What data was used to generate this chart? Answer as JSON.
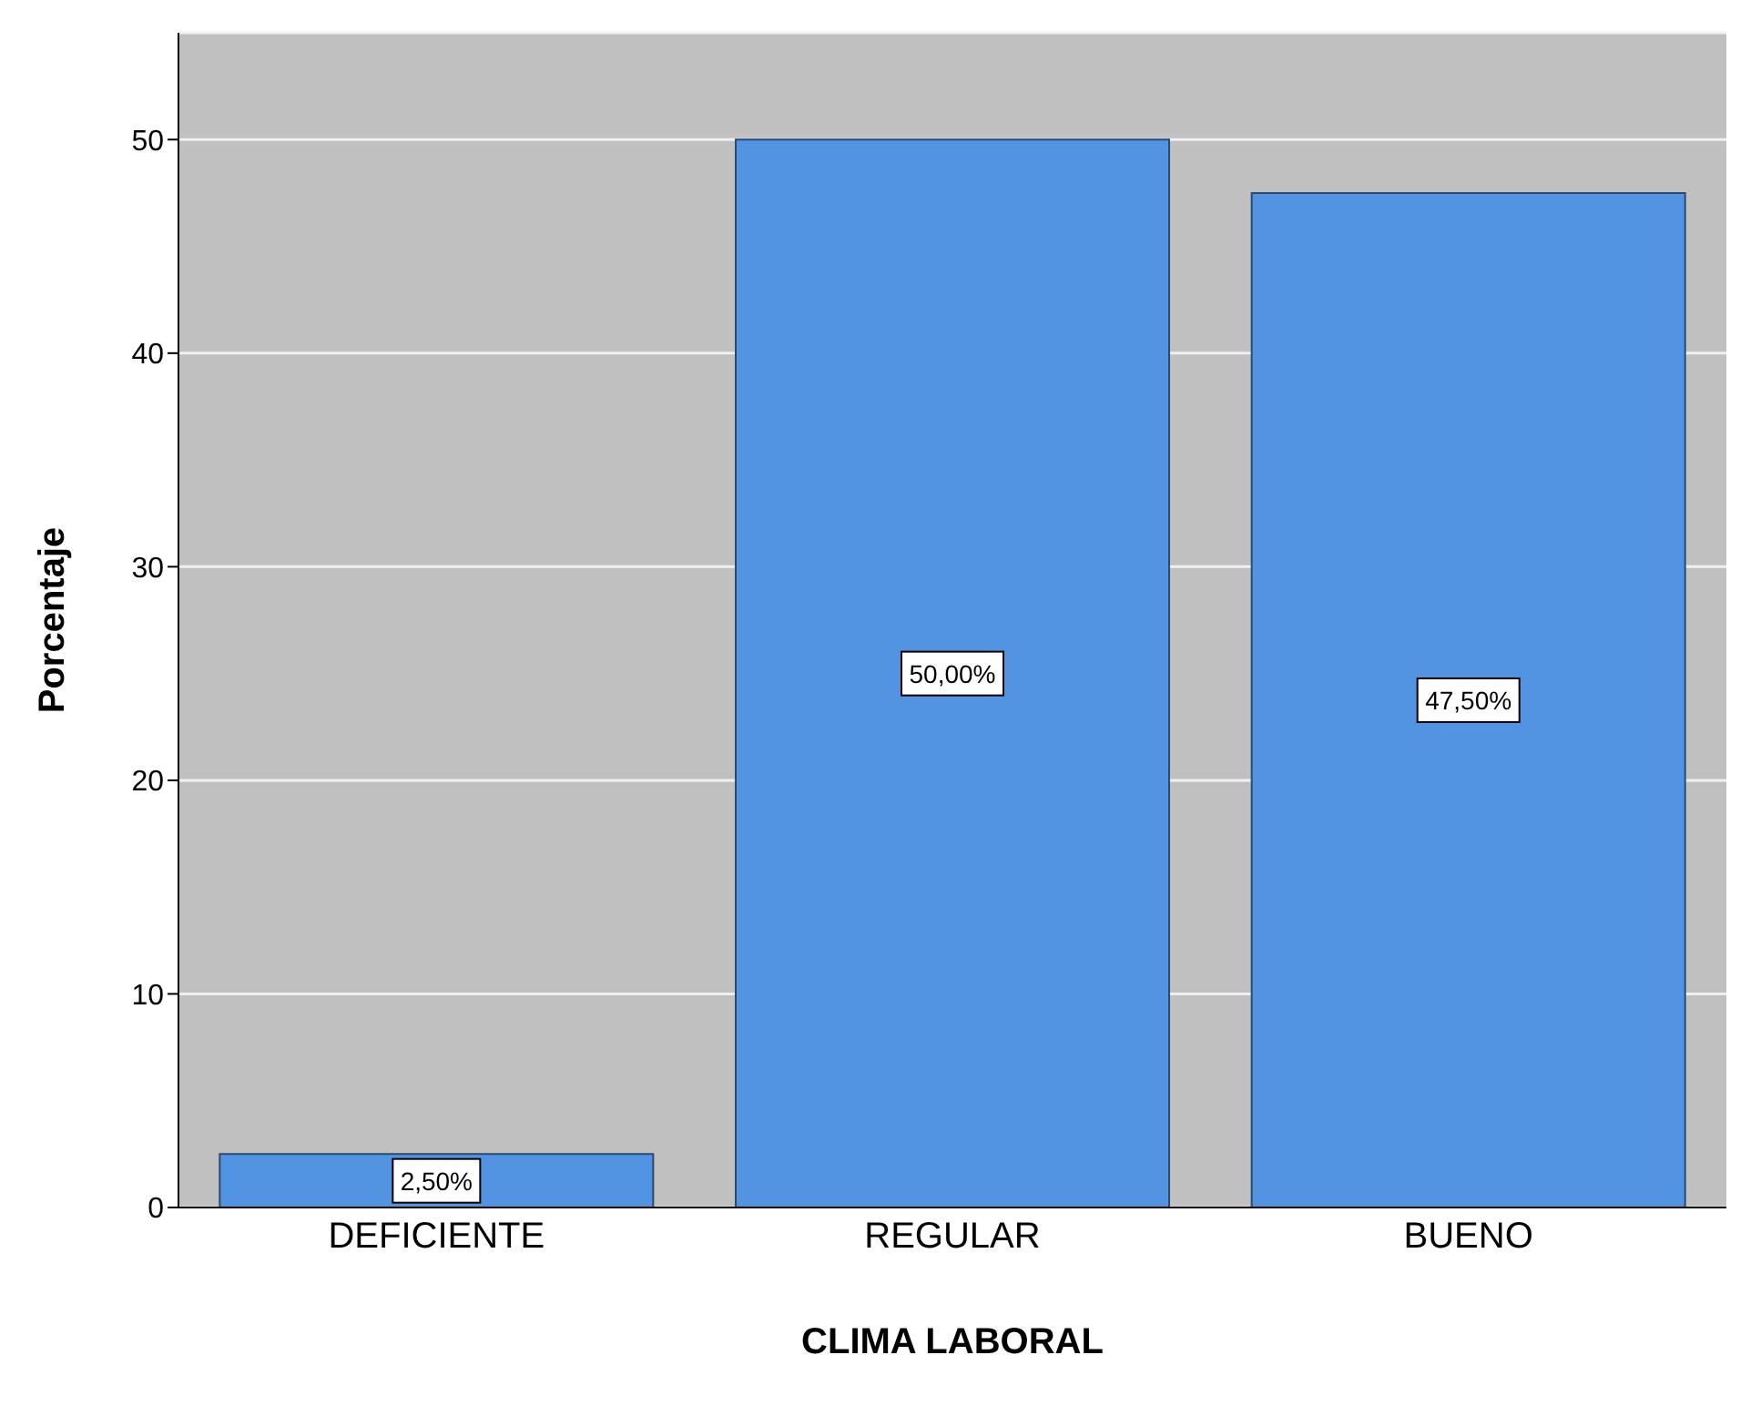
{
  "chart_data": {
    "type": "bar",
    "xlabel": "CLIMA LABORAL",
    "ylabel": "Porcentaje",
    "categories": [
      "DEFICIENTE",
      "REGULAR",
      "BUENO"
    ],
    "values": [
      2.5,
      50,
      47.5
    ],
    "value_labels": [
      "2,50%",
      "50,00%",
      "47,50%"
    ],
    "color": "#5294e2",
    "ylim": [
      0,
      55
    ],
    "yticks": [
      0,
      10,
      20,
      30,
      40,
      50
    ],
    "grid": "y"
  }
}
